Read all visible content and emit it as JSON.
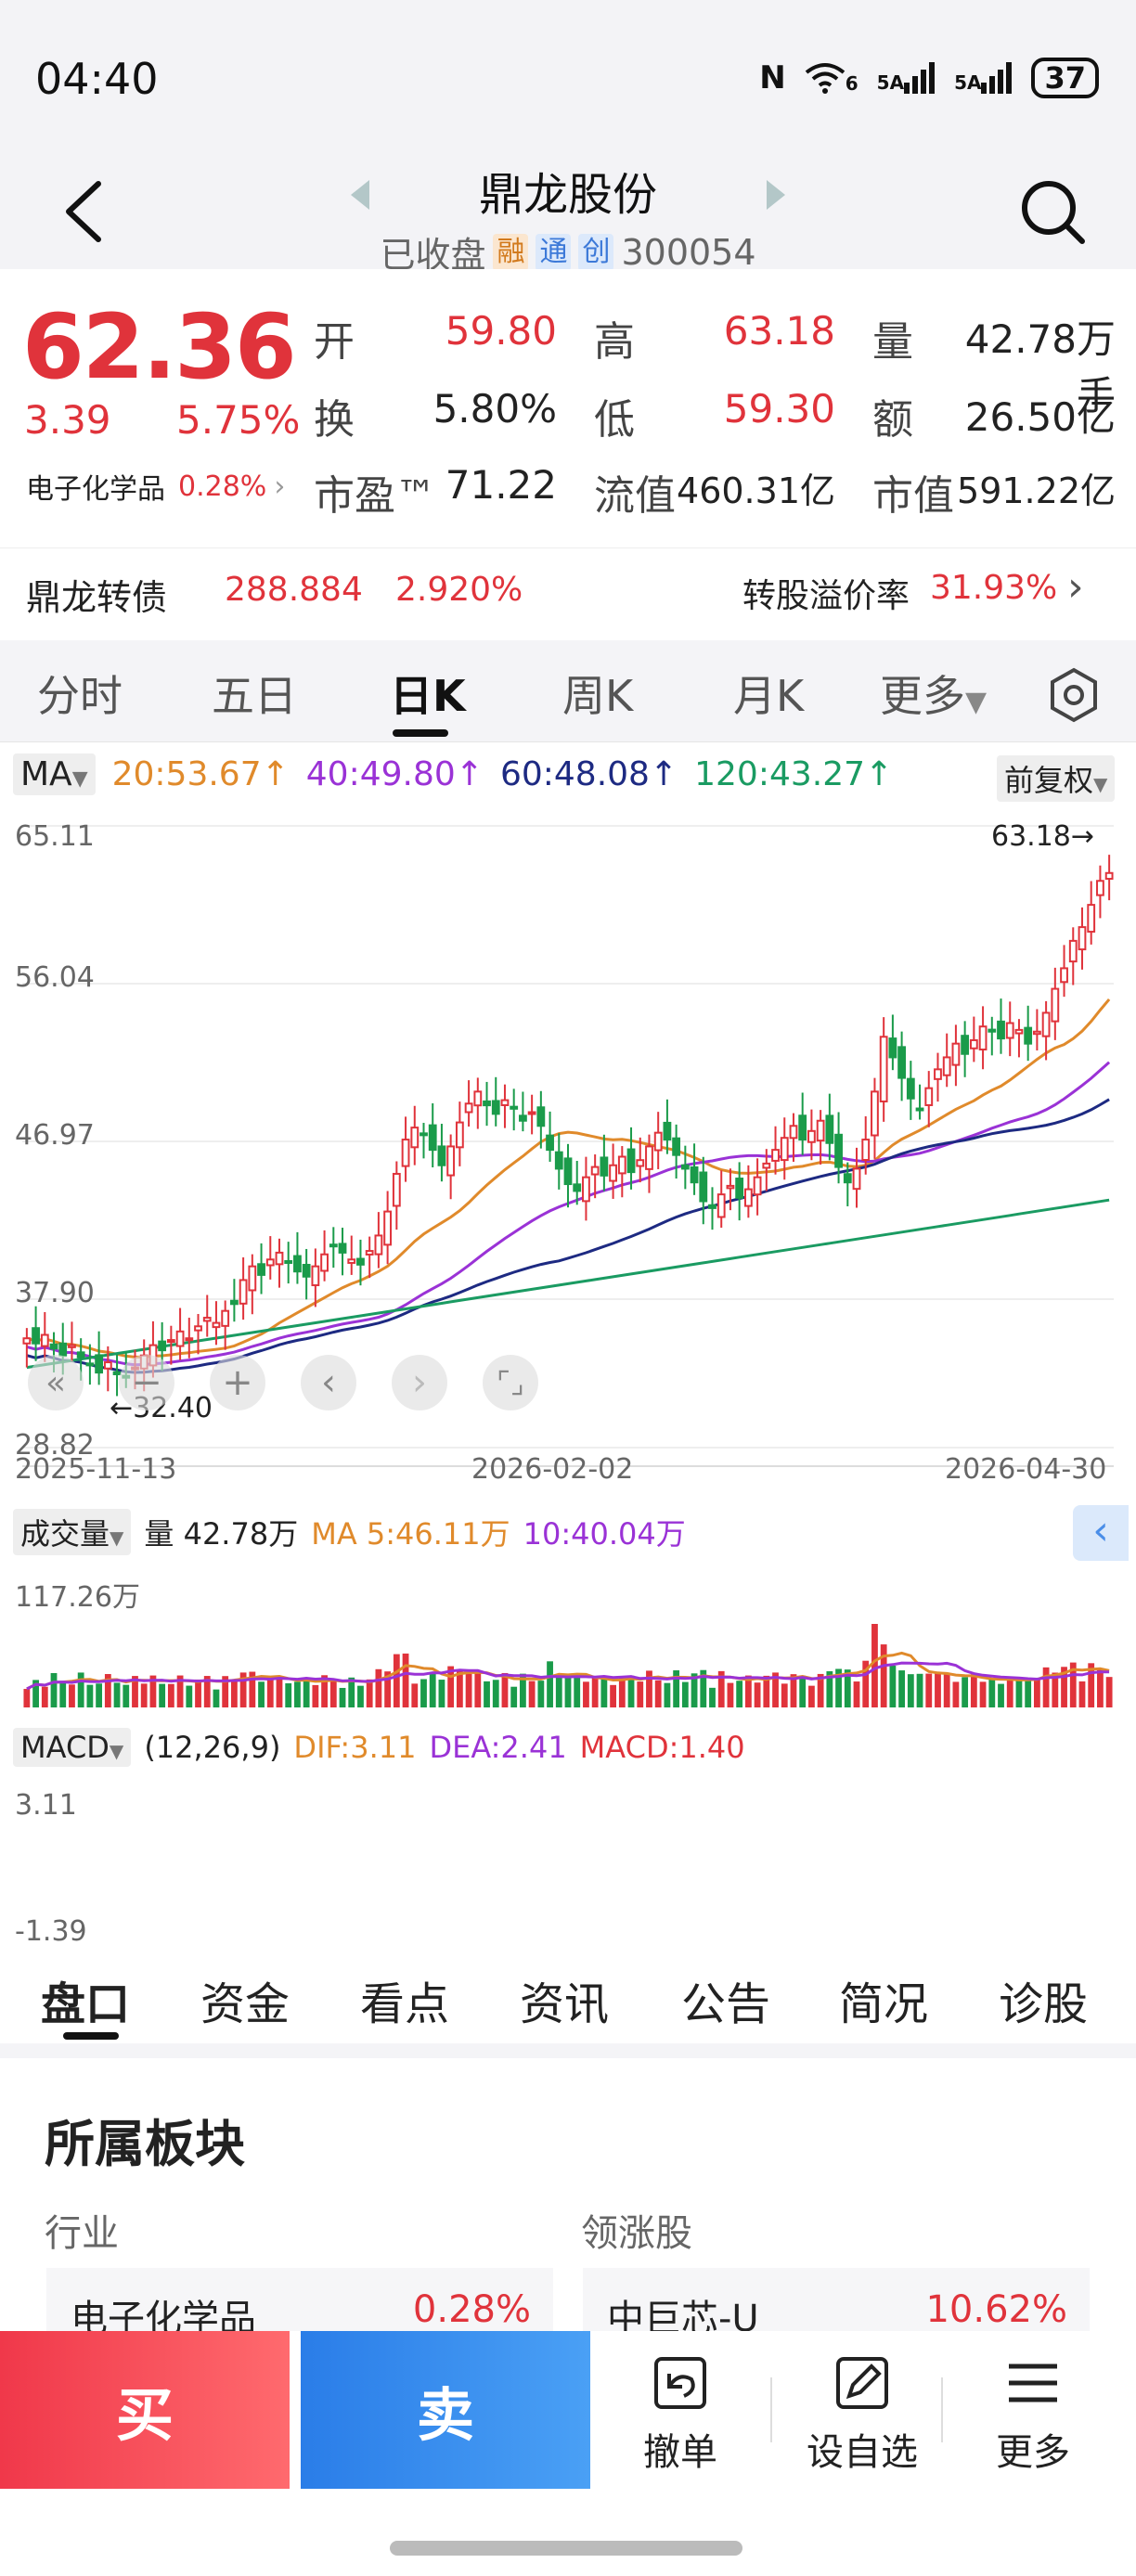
{
  "status": {
    "time": "04:40",
    "nfc": "N",
    "wifi": "6",
    "sig1": "5A",
    "sig2": "5A",
    "battery": "37"
  },
  "header": {
    "name": "鼎龙股份",
    "status": "已收盘",
    "badges": [
      "融",
      "通",
      "创"
    ],
    "code": "300054"
  },
  "quote": {
    "price": "62.36",
    "change": "3.39",
    "change_pct": "5.75%",
    "industry": "电子化学品",
    "industry_pct": "0.28%",
    "open_label": "开",
    "open": "59.80",
    "high_label": "高",
    "high": "63.18",
    "vol_label": "量",
    "vol": "42.78万手",
    "turn_label": "换",
    "turn": "5.80%",
    "low_label": "低",
    "low": "59.30",
    "amt_label": "额",
    "amt": "26.50亿",
    "pe_label": "市盈™",
    "pe": "71.22",
    "float_label": "流值",
    "float": "460.31亿",
    "mcap_label": "市值",
    "mcap": "591.22亿"
  },
  "bond": {
    "name": "鼎龙转债",
    "price": "288.884",
    "pct": "2.920%",
    "premium_label": "转股溢价率",
    "premium": "31.93%"
  },
  "kline_tabs": [
    "分时",
    "五日",
    "日K",
    "周K",
    "月K",
    "更多"
  ],
  "ma_bar": {
    "label": "MA",
    "ma20": "20:53.67↑",
    "ma40": "40:49.80↑",
    "ma60": "60:48.08↑",
    "ma120": "120:43.27↑",
    "adjust": "前复权"
  },
  "axis": {
    "y1": "65.11",
    "y2": "56.04",
    "y3": "46.97",
    "y4": "37.90",
    "y5": "28.82",
    "hi_marker": "63.18→",
    "lo_marker": "←32.40",
    "d1": "2025-11-13",
    "d2": "2026-02-02",
    "d3": "2026-04-30"
  },
  "volume_bar": {
    "label": "成交量",
    "vol": "量 42.78万",
    "ma5": "MA 5:46.11万",
    "ma10": "10:40.04万",
    "max": "117.26万"
  },
  "macd_bar": {
    "label": "MACD",
    "params": "(12,26,9)",
    "dif": "DIF:3.11",
    "dea": "DEA:2.41",
    "macd": "MACD:1.40",
    "top": "3.11",
    "bottom": "-1.39"
  },
  "info_tabs": [
    "盘口",
    "资金",
    "看点",
    "资讯",
    "公告",
    "简况",
    "诊股"
  ],
  "sector": {
    "title": "所属板块",
    "industry_label": "行业",
    "leader_label": "领涨股",
    "industry": "电子化学品",
    "industry_pct": "0.28%",
    "leader": "中巨芯-U",
    "leader_pct": "10.62%"
  },
  "actions": {
    "buy": "买",
    "sell": "卖",
    "cancel": "撤单",
    "watch": "设自选",
    "more": "更多"
  },
  "chart_data": {
    "type": "candlestick",
    "x_range": [
      "2025-11-13",
      "2026-04-30"
    ],
    "ylim": [
      28.82,
      65.11
    ],
    "high_marker": 63.18,
    "low_marker": 32.4,
    "closes": [
      35.2,
      34.9,
      35.4,
      34.6,
      34.2,
      34.8,
      34.1,
      33.7,
      33.2,
      33.8,
      33.1,
      32.9,
      33.5,
      34.2,
      34.8,
      34.5,
      35.1,
      35.6,
      35.2,
      35.9,
      36.4,
      36.1,
      36.8,
      37.2,
      38.6,
      39.4,
      38.9,
      39.8,
      40.2,
      39.6,
      39.1,
      38.8,
      39.4,
      40.1,
      40.6,
      40.2,
      39.8,
      39.5,
      40.3,
      41.2,
      42.6,
      44.8,
      46.8,
      47.5,
      47.1,
      46.2,
      45.3,
      46.4,
      47.8,
      48.9,
      49.6,
      48.8,
      48.3,
      49.1,
      48.6,
      47.9,
      48.4,
      47.6,
      46.2,
      45.1,
      44.2,
      43.8,
      44.6,
      45.2,
      44.7,
      45.3,
      45.8,
      44.9,
      45.6,
      46.4,
      47.2,
      46.8,
      45.9,
      45.1,
      44.3,
      43.2,
      42.8,
      43.6,
      44.1,
      43.4,
      43.9,
      44.6,
      45.4,
      46.2,
      46.9,
      47.6,
      46.8,
      47.3,
      47.9,
      46.6,
      45.2,
      44.3,
      45.1,
      46.8,
      49.6,
      52.8,
      51.6,
      50.4,
      49.2,
      48.6,
      49.8,
      50.9,
      51.6,
      52.4,
      51.8,
      52.6,
      53.4,
      53.1,
      52.7,
      53.6,
      53.2,
      52.4,
      53.1,
      54.2,
      55.6,
      56.8,
      58.4,
      59.2,
      60.5,
      61.9,
      62.36
    ],
    "ma20": 53.67,
    "ma40": 49.8,
    "ma60": 48.08,
    "ma120": 43.27,
    "volume_max": 117.26,
    "volume_today": 42.78,
    "vol_ma5": 46.11,
    "vol_ma10": 40.04,
    "macd": {
      "dif": 3.11,
      "dea": 2.41,
      "macd": 1.4,
      "ylim": [
        -1.39,
        3.11
      ]
    }
  }
}
